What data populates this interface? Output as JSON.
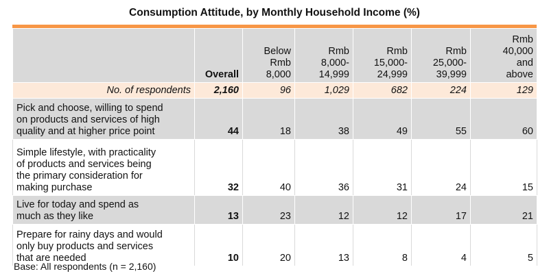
{
  "title": "Consumption Attitude, by Monthly Household Income (%)",
  "base_note": "Base: All respondents (n = 2,160)",
  "colors": {
    "accent_bar": "#f79646",
    "header_bg": "#d9d9d9",
    "respondents_bg": "#fde9d9"
  },
  "chart_data": {
    "type": "table",
    "title": "Consumption Attitude, by Monthly Household Income (%)",
    "columns": [
      "Overall",
      "Below Rmb 8,000",
      "Rmb 8,000-14,999",
      "Rmb 15,000-24,999",
      "Rmb 25,000-39,999",
      "Rmb 40,000 and above"
    ],
    "columns_display": [
      [
        "Overall"
      ],
      [
        "Below",
        "Rmb",
        "8,000"
      ],
      [
        "Rmb",
        "8,000-",
        "14,999"
      ],
      [
        "Rmb",
        "15,000-",
        "24,999"
      ],
      [
        "Rmb",
        "25,000-",
        "39,999"
      ],
      [
        "Rmb",
        "40,000",
        "and",
        "above"
      ]
    ],
    "respondents": {
      "label": "No. of respondents",
      "values": [
        "2,160",
        "96",
        "1,029",
        "682",
        "224",
        "129"
      ]
    },
    "rows": [
      {
        "label": "Pick and choose, willing to spend on products and services of high quality and at higher price point",
        "label_lines": [
          "Pick and choose, willing to spend",
          "on products and services of high",
          "quality and at higher price point"
        ],
        "values": [
          44,
          18,
          38,
          49,
          55,
          60
        ]
      },
      {
        "label": "Simple lifestyle, with practicality of products and services being the primary consideration for making purchase",
        "label_lines": [
          "Simple lifestyle, with practicality",
          "of products and services being",
          "the primary consideration for",
          "making purchase"
        ],
        "values": [
          32,
          40,
          36,
          31,
          24,
          15
        ]
      },
      {
        "label": "Live for today and spend as much as they like",
        "label_lines": [
          "Live for today and spend as",
          "much as they like"
        ],
        "values": [
          13,
          23,
          12,
          12,
          17,
          21
        ]
      },
      {
        "label": "Prepare for rainy days and would only buy products and services that are needed",
        "label_lines": [
          "Prepare for rainy days and would",
          "only buy products and services",
          "that are needed"
        ],
        "values": [
          10,
          20,
          13,
          8,
          4,
          5
        ]
      }
    ]
  }
}
